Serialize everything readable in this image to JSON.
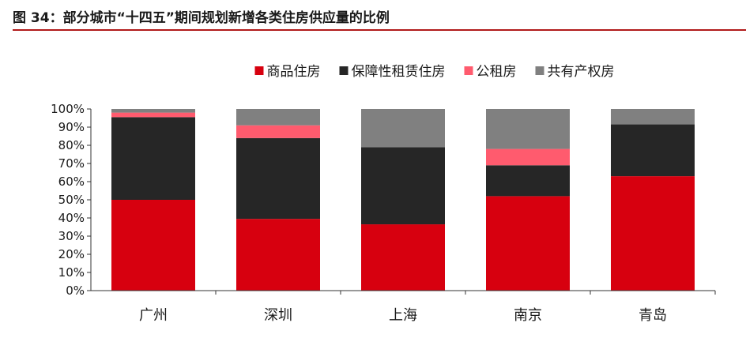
{
  "figure": {
    "title": "图 34：部分城市“十四五”期间规划新增各类住房供应量的比例"
  },
  "colors": {
    "rule": "#b11a1a",
    "axis": "#333333"
  },
  "chart_data": {
    "type": "bar",
    "stacked": true,
    "categories": [
      "广州",
      "深圳",
      "上海",
      "南京",
      "青岛"
    ],
    "series": [
      {
        "name": "商品住房",
        "color": "#d7000f",
        "values": [
          50,
          39.5,
          36.5,
          52,
          63
        ]
      },
      {
        "name": "保障性租赁住房",
        "color": "#262626",
        "values": [
          45.5,
          44.5,
          42.5,
          17,
          28.5
        ]
      },
      {
        "name": "公租房",
        "color": "#ff5b6e",
        "values": [
          2.5,
          7,
          0,
          9,
          0
        ]
      },
      {
        "name": "共有产权房",
        "color": "#808080",
        "values": [
          2,
          9,
          21,
          22,
          8.5
        ]
      }
    ],
    "ylim": [
      0,
      100
    ],
    "yticks": [
      "0%",
      "10%",
      "20%",
      "30%",
      "40%",
      "50%",
      "60%",
      "70%",
      "80%",
      "90%",
      "100%"
    ],
    "legend_position": "top",
    "grid": false,
    "xlabel": "",
    "ylabel": ""
  }
}
